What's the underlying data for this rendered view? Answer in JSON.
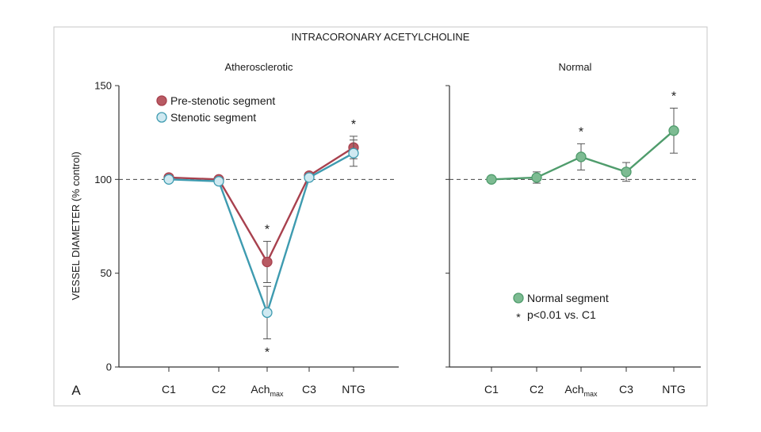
{
  "figure": {
    "title": "INTRACORONARY ACETYLCHOLINE",
    "panel_letter": "A",
    "ylabel": "VESSEL DIAMETER (% control)"
  },
  "chart_data": [
    {
      "type": "line",
      "title": "Atherosclerotic",
      "categories": [
        "C1",
        "C2",
        "Achmax",
        "C3",
        "NTG"
      ],
      "category_labels": [
        {
          "main": "C1",
          "sub": ""
        },
        {
          "main": "C2",
          "sub": ""
        },
        {
          "main": "Ach",
          "sub": "max"
        },
        {
          "main": "C3",
          "sub": ""
        },
        {
          "main": "NTG",
          "sub": ""
        }
      ],
      "ylim": [
        0,
        150
      ],
      "yticks": [
        0,
        50,
        100,
        150
      ],
      "reference_line": 100,
      "series": [
        {
          "name": "Pre-stenotic segment",
          "color": "#a8414e",
          "marker_fill": "#b85a63",
          "values": [
            101,
            100,
            56,
            102,
            117
          ],
          "error": [
            0,
            0,
            11,
            0,
            6
          ]
        },
        {
          "name": "Stenotic segment",
          "color": "#3e9bb0",
          "marker_fill": "#cfe9f1",
          "values": [
            100,
            99,
            29,
            101,
            114
          ],
          "error": [
            0,
            0,
            14,
            0,
            7
          ]
        }
      ],
      "annotations": [
        {
          "category": "Achmax",
          "text": "*",
          "position": "above"
        },
        {
          "category": "Achmax",
          "text": "*",
          "position": "below"
        },
        {
          "category": "NTG",
          "text": "*",
          "position": "above"
        }
      ],
      "legend": {
        "placement": "top-left",
        "entries": [
          "Pre-stenotic segment",
          "Stenotic segment"
        ]
      }
    },
    {
      "type": "line",
      "title": "Normal",
      "categories": [
        "C1",
        "C2",
        "Achmax",
        "C3",
        "NTG"
      ],
      "category_labels": [
        {
          "main": "C1",
          "sub": ""
        },
        {
          "main": "C2",
          "sub": ""
        },
        {
          "main": "Ach",
          "sub": "max"
        },
        {
          "main": "C3",
          "sub": ""
        },
        {
          "main": "NTG",
          "sub": ""
        }
      ],
      "ylim": [
        0,
        150
      ],
      "yticks": [
        0,
        50,
        100,
        150
      ],
      "reference_line": 100,
      "series": [
        {
          "name": "Normal segment",
          "color": "#4f9c6c",
          "marker_fill": "#7dbb92",
          "values": [
            100,
            101,
            112,
            104,
            126
          ],
          "error": [
            0,
            3,
            7,
            5,
            12
          ]
        }
      ],
      "annotations": [
        {
          "category": "Achmax",
          "text": "*",
          "position": "above"
        },
        {
          "category": "NTG",
          "text": "*",
          "position": "above"
        }
      ],
      "legend": {
        "placement": "bottom-center",
        "entries": [
          "Normal segment"
        ],
        "note_symbol": "*",
        "note_text": "p<0.01 vs. C1"
      }
    }
  ]
}
